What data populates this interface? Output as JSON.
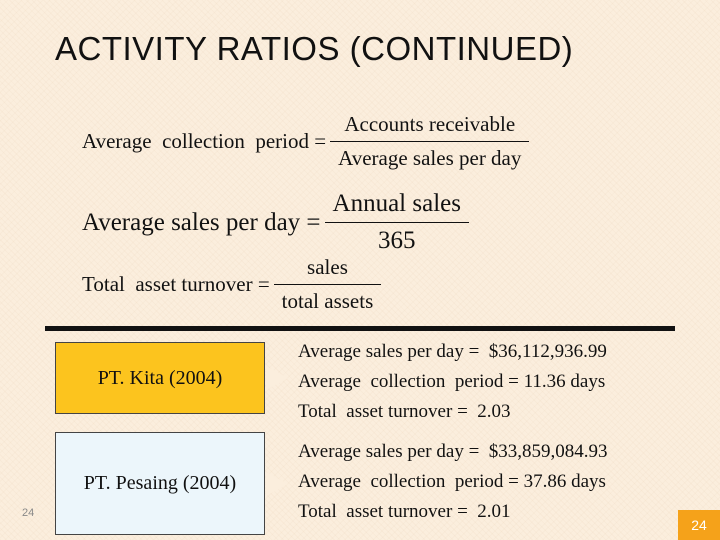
{
  "title": "ACTIVITY RATIOS (CONTINUED)",
  "formulas": {
    "collection_period": {
      "lhs": "Average  collection  period =",
      "numerator": "Accounts   receivable",
      "denominator": "Average   sales  per day"
    },
    "avg_sales_per_day": {
      "lhs": "Average sales per day =",
      "numerator": "Annual sales",
      "denominator": "365"
    },
    "asset_turnover": {
      "lhs": "Total  asset turnover =",
      "numerator": "sales",
      "denominator": "total assets"
    }
  },
  "companies": {
    "kita": {
      "label": "PT. Kita (2004)",
      "avg_sales_per_day": "Average sales per day =  $36,112,936.99",
      "collection_period": "Average  collection  period = 11.36 days",
      "asset_turnover": "Total  asset turnover =  2.03"
    },
    "pesaing": {
      "label": "PT. Pesaing (2004)",
      "avg_sales_per_day": "Average sales per day =  $33,859,084.93",
      "collection_period": "Average  collection  period = 37.86 days",
      "asset_turnover": "Total  asset turnover =  2.01"
    }
  },
  "page_number_left": "24",
  "page_number_right": "24",
  "colors": {
    "background": "#fbeedd",
    "kita_box": "#fcc41e",
    "pesaing_box": "#ecf6fb",
    "page_badge": "#f5a21a"
  }
}
